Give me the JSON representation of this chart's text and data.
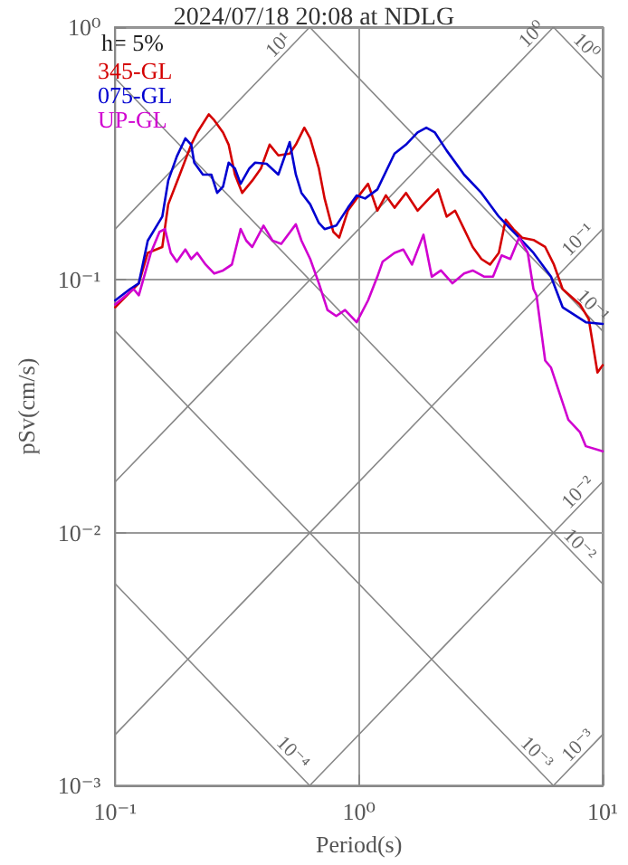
{
  "chart_data": {
    "type": "line",
    "title": "2024/07/18 20:08 at NDLG",
    "xlabel": "Period(s)",
    "ylabel": "pSv(cm/s)",
    "log": "xy",
    "xlim": [
      0.1,
      10
    ],
    "ylim": [
      0.001,
      1
    ],
    "xticks": [
      {
        "value": 0.1,
        "label": "10⁻¹"
      },
      {
        "value": 1,
        "label": "10⁰"
      },
      {
        "value": 10,
        "label": "10¹"
      }
    ],
    "yticks": [
      {
        "value": 0.001,
        "label": "10⁻³"
      },
      {
        "value": 0.01,
        "label": "10⁻²"
      },
      {
        "value": 0.1,
        "label": "10⁻¹"
      },
      {
        "value": 1,
        "label": "10⁰"
      }
    ],
    "grid": true,
    "legend": "top left",
    "marker": "none",
    "line_style": "solid",
    "annotations": [
      "h= 5%",
      {
        "text": "10¹",
        "x": 0.5,
        "y": 0.796
      },
      {
        "text": "10⁰",
        "x": 5.5,
        "y": 0.875
      },
      {
        "text": "10⁰",
        "x": 8,
        "y": 0.785
      },
      {
        "text": "10⁻¹",
        "x": 8.5,
        "y": 0.135
      },
      {
        "text": "10⁻¹",
        "x": 8.5,
        "y": 0.0739
      },
      {
        "text": "10⁻²",
        "x": 8.5,
        "y": 0.0135
      },
      {
        "text": "10⁻²",
        "x": 7.5,
        "y": 0.00837
      },
      {
        "text": "10⁻³",
        "x": 5,
        "y": 0.00126
      },
      {
        "text": "10⁻³",
        "x": 8.5,
        "y": 0.00135
      },
      {
        "text": "10⁻⁴",
        "x": 0.5,
        "y": 0.00126
      }
    ],
    "series": [
      {
        "color": "#888888",
        "x": [
          0.1,
          0.628
        ],
        "values": [
          0.159,
          1
        ]
      },
      {
        "color": "#888888",
        "x": [
          0.1,
          6.28
        ],
        "values": [
          0.0159,
          1
        ]
      },
      {
        "color": "#888888",
        "x": [
          0.1,
          10
        ],
        "values": [
          0.00159,
          0.159
        ]
      },
      {
        "color": "#888888",
        "x": [
          0.628,
          10
        ],
        "values": [
          0.001,
          0.0159
        ]
      },
      {
        "color": "#888888",
        "x": [
          6.28,
          10
        ],
        "values": [
          0.001,
          0.00159
        ]
      },
      {
        "color": "#888888",
        "x": [
          6.28,
          10
        ],
        "values": [
          1,
          0.628
        ]
      },
      {
        "color": "#888888",
        "x": [
          0.628,
          10
        ],
        "values": [
          1,
          0.0628
        ]
      },
      {
        "color": "#888888",
        "x": [
          0.1,
          10
        ],
        "values": [
          0.628,
          0.00628
        ]
      },
      {
        "color": "#888888",
        "x": [
          0.1,
          6.28
        ],
        "values": [
          0.0628,
          0.001
        ]
      },
      {
        "color": "#888888",
        "x": [
          0.1,
          0.628
        ],
        "values": [
          0.00628,
          0.001
        ]
      },
      {
        "name": "345-GL",
        "color": "#d40000",
        "x": [
          0.1,
          0.125,
          0.136,
          0.156,
          0.165,
          0.184,
          0.205,
          0.217,
          0.242,
          0.255,
          0.277,
          0.292,
          0.31,
          0.332,
          0.365,
          0.396,
          0.43,
          0.467,
          0.52,
          0.551,
          0.597,
          0.631,
          0.685,
          0.723,
          0.785,
          0.83,
          0.901,
          0.979,
          1.09,
          1.19,
          1.29,
          1.4,
          1.56,
          1.74,
          1.94,
          2.11,
          2.29,
          2.48,
          2.7,
          2.93,
          3.18,
          3.45,
          3.75,
          4.0,
          4.3,
          4.67,
          5.2,
          5.81,
          6.31,
          6.85,
          8.07,
          8.77,
          9.52,
          10
        ],
        "values": [
          0.078,
          0.097,
          0.128,
          0.135,
          0.199,
          0.261,
          0.343,
          0.383,
          0.452,
          0.428,
          0.383,
          0.343,
          0.261,
          0.221,
          0.247,
          0.276,
          0.343,
          0.311,
          0.316,
          0.343,
          0.4,
          0.363,
          0.276,
          0.21,
          0.155,
          0.147,
          0.188,
          0.21,
          0.24,
          0.188,
          0.216,
          0.193,
          0.221,
          0.188,
          0.21,
          0.228,
          0.178,
          0.188,
          0.159,
          0.135,
          0.121,
          0.115,
          0.128,
          0.173,
          0.159,
          0.147,
          0.144,
          0.135,
          0.115,
          0.092,
          0.08,
          0.07,
          0.043,
          0.046
        ]
      },
      {
        "name": "075-GL",
        "color": "#0000d0",
        "x": [
          0.1,
          0.115,
          0.125,
          0.136,
          0.156,
          0.165,
          0.179,
          0.194,
          0.205,
          0.211,
          0.229,
          0.248,
          0.262,
          0.277,
          0.292,
          0.31,
          0.327,
          0.355,
          0.375,
          0.418,
          0.467,
          0.52,
          0.551,
          0.581,
          0.631,
          0.685,
          0.723,
          0.807,
          0.901,
          0.979,
          1.06,
          1.19,
          1.4,
          1.56,
          1.74,
          1.89,
          2.05,
          2.29,
          2.7,
          3.18,
          3.75,
          4.42,
          5.2,
          6.14,
          6.85,
          8.53,
          10
        ],
        "values": [
          0.083,
          0.092,
          0.097,
          0.143,
          0.178,
          0.247,
          0.308,
          0.363,
          0.343,
          0.291,
          0.261,
          0.261,
          0.221,
          0.234,
          0.291,
          0.276,
          0.24,
          0.276,
          0.291,
          0.288,
          0.261,
          0.351,
          0.261,
          0.221,
          0.199,
          0.168,
          0.159,
          0.164,
          0.193,
          0.216,
          0.21,
          0.228,
          0.316,
          0.343,
          0.383,
          0.4,
          0.383,
          0.325,
          0.261,
          0.221,
          0.178,
          0.151,
          0.128,
          0.103,
          0.078,
          0.068,
          0.067
        ]
      },
      {
        "name": "UP-GL",
        "color": "#d000d0",
        "x": [
          0.1,
          0.119,
          0.125,
          0.14,
          0.152,
          0.16,
          0.169,
          0.179,
          0.194,
          0.205,
          0.217,
          0.235,
          0.255,
          0.277,
          0.301,
          0.327,
          0.345,
          0.365,
          0.406,
          0.442,
          0.48,
          0.551,
          0.581,
          0.631,
          0.685,
          0.743,
          0.807,
          0.877,
          0.979,
          1.09,
          1.19,
          1.25,
          1.4,
          1.52,
          1.65,
          1.84,
          1.99,
          2.17,
          2.42,
          2.7,
          2.93,
          3.27,
          3.55,
          3.85,
          4.18,
          4.54,
          4.93,
          5.2,
          5.35,
          5.81,
          6.14,
          7.23,
          8.07,
          8.53,
          10
        ],
        "values": [
          0.08,
          0.092,
          0.087,
          0.128,
          0.155,
          0.159,
          0.128,
          0.118,
          0.132,
          0.121,
          0.128,
          0.115,
          0.106,
          0.109,
          0.115,
          0.159,
          0.143,
          0.135,
          0.164,
          0.143,
          0.139,
          0.166,
          0.143,
          0.121,
          0.097,
          0.076,
          0.072,
          0.076,
          0.068,
          0.083,
          0.103,
          0.118,
          0.128,
          0.132,
          0.115,
          0.151,
          0.103,
          0.109,
          0.097,
          0.106,
          0.109,
          0.103,
          0.103,
          0.125,
          0.121,
          0.147,
          0.128,
          0.092,
          0.087,
          0.048,
          0.045,
          0.028,
          0.025,
          0.022,
          0.021
        ]
      }
    ]
  }
}
